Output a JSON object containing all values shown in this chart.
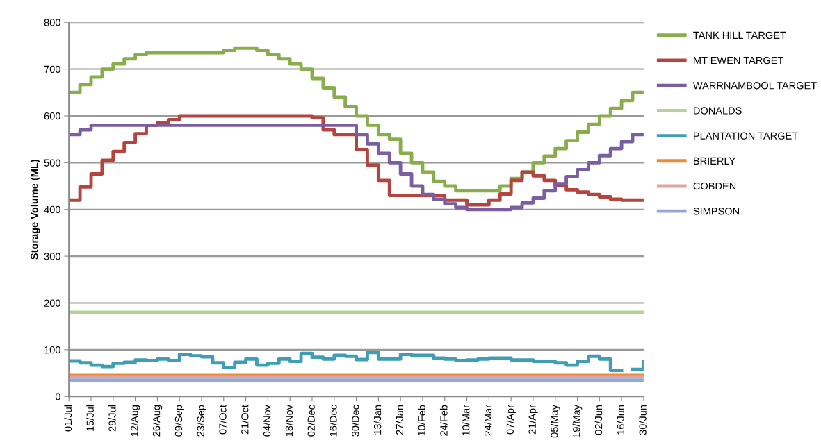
{
  "chart_data": {
    "type": "step",
    "ylabel": "Storage Volume (ML)",
    "categories": [
      "01/Jul",
      null,
      "15/Jul",
      null,
      "29/Jul",
      null,
      "12/Aug",
      null,
      "26/Aug",
      null,
      "09/Sep",
      null,
      "23/Sep",
      null,
      "07/Oct",
      null,
      "21/Oct",
      null,
      "04/Nov",
      null,
      "18/Nov",
      null,
      "02/Dec",
      null,
      "16/Dec",
      null,
      "30/Dec",
      null,
      "13/Jan",
      null,
      "27/Jan",
      null,
      "10/Feb",
      null,
      "24/Feb",
      null,
      "10/Mar",
      null,
      "24/Mar",
      null,
      "07/Apr",
      null,
      "21/Apr",
      null,
      "05/May",
      null,
      "19/May",
      null,
      "02/Jun",
      null,
      "16/Jun",
      null,
      "30/Jun"
    ],
    "ylim": [
      0,
      800
    ],
    "yticks": [
      0,
      100,
      200,
      300,
      400,
      500,
      600,
      700,
      800
    ],
    "grid": "y",
    "legend": "right",
    "series": [
      {
        "name": "TANK HILL TARGET",
        "color": "#8aad4b",
        "values": [
          650,
          667,
          683,
          700,
          711,
          722,
          731,
          735,
          735,
          735,
          735,
          735,
          735,
          735,
          740,
          745,
          745,
          740,
          731,
          722,
          711,
          700,
          680,
          660,
          640,
          620,
          600,
          580,
          560,
          550,
          520,
          500,
          480,
          460,
          450,
          440,
          440,
          440,
          440,
          450,
          466,
          480,
          500,
          514,
          530,
          547,
          565,
          582,
          600,
          616,
          633,
          650,
          650
        ]
      },
      {
        "name": "MT EWEN TARGET",
        "color": "#b5443f",
        "values": [
          420,
          448,
          476,
          505,
          524,
          543,
          562,
          580,
          585,
          592,
          600,
          600,
          600,
          600,
          600,
          600,
          600,
          600,
          600,
          600,
          600,
          600,
          596,
          570,
          560,
          560,
          528,
          495,
          462,
          430,
          430,
          430,
          430,
          430,
          420,
          420,
          410,
          410,
          420,
          433,
          462,
          480,
          472,
          462,
          451,
          442,
          437,
          432,
          427,
          422,
          420,
          420,
          420
        ]
      },
      {
        "name": "WARRNAMBOOL TARGET",
        "color": "#7a5ea0",
        "values": [
          560,
          570,
          580,
          580,
          580,
          580,
          580,
          580,
          580,
          580,
          580,
          580,
          580,
          580,
          580,
          580,
          580,
          580,
          580,
          580,
          580,
          580,
          580,
          580,
          580,
          580,
          560,
          540,
          520,
          500,
          476,
          450,
          432,
          422,
          412,
          404,
          400,
          400,
          400,
          400,
          404,
          414,
          424,
          440,
          455,
          470,
          485,
          500,
          515,
          530,
          545,
          560,
          560
        ]
      },
      {
        "name": "DONALDS",
        "color": "#b8d19a",
        "values": [
          180,
          180,
          180,
          180,
          180,
          180,
          180,
          180,
          180,
          180,
          180,
          180,
          180,
          180,
          180,
          180,
          180,
          180,
          180,
          180,
          180,
          180,
          180,
          180,
          180,
          180,
          180,
          180,
          180,
          180,
          180,
          180,
          180,
          180,
          180,
          180,
          180,
          180,
          180,
          180,
          180,
          180,
          180,
          180,
          180,
          180,
          180,
          180,
          180,
          180,
          180,
          180,
          180
        ]
      },
      {
        "name": "PLANTATION TARGET",
        "color": "#3f9db6",
        "values": [
          76,
          72,
          67,
          64,
          71,
          73,
          78,
          77,
          80,
          77,
          90,
          87,
          85,
          72,
          62,
          73,
          80,
          67,
          71,
          80,
          75,
          92,
          84,
          80,
          88,
          86,
          79,
          94,
          80,
          80,
          90,
          88,
          88,
          82,
          80,
          77,
          78,
          80,
          82,
          82,
          78,
          78,
          75,
          75,
          72,
          67,
          75,
          86,
          80,
          56,
          null,
          58,
          75
        ]
      },
      {
        "name": "BRIERLY",
        "color": "#ec8a3a",
        "values": [
          45,
          45,
          45,
          45,
          45,
          45,
          45,
          45,
          45,
          45,
          45,
          45,
          45,
          45,
          45,
          45,
          45,
          45,
          45,
          45,
          45,
          45,
          45,
          45,
          45,
          45,
          45,
          45,
          45,
          45,
          45,
          45,
          45,
          45,
          45,
          45,
          45,
          45,
          45,
          45,
          45,
          45,
          45,
          45,
          45,
          45,
          45,
          45,
          45,
          45,
          45,
          45,
          45
        ]
      },
      {
        "name": "COBDEN",
        "color": "#dea3a3",
        "values": [
          42,
          42,
          42,
          42,
          42,
          42,
          42,
          42,
          42,
          42,
          42,
          42,
          42,
          42,
          42,
          42,
          42,
          42,
          42,
          42,
          42,
          42,
          42,
          42,
          42,
          42,
          42,
          42,
          42,
          42,
          42,
          42,
          42,
          42,
          42,
          42,
          42,
          42,
          42,
          42,
          42,
          42,
          42,
          42,
          42,
          42,
          42,
          42,
          42,
          42,
          42,
          42,
          42
        ]
      },
      {
        "name": "SIMPSON",
        "color": "#93a9d3",
        "values": [
          35,
          35,
          35,
          35,
          35,
          35,
          35,
          35,
          35,
          35,
          35,
          35,
          35,
          35,
          35,
          35,
          35,
          35,
          35,
          35,
          35,
          35,
          35,
          35,
          35,
          35,
          35,
          35,
          35,
          35,
          35,
          35,
          35,
          35,
          35,
          35,
          35,
          35,
          35,
          35,
          35,
          35,
          35,
          35,
          35,
          35,
          35,
          35,
          35,
          35,
          35,
          35,
          35
        ]
      }
    ]
  }
}
